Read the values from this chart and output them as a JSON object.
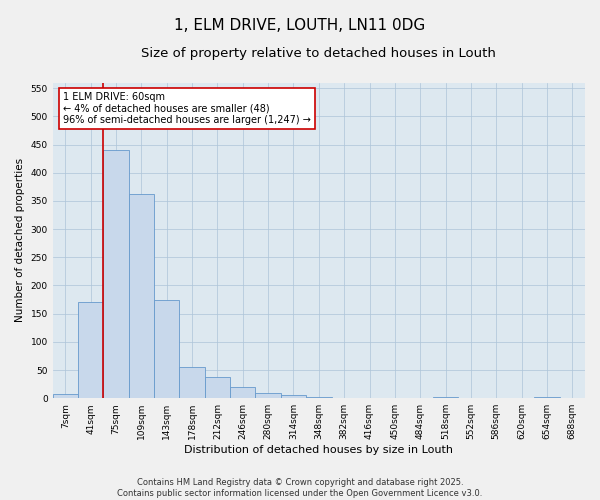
{
  "title": "1, ELM DRIVE, LOUTH, LN11 0DG",
  "subtitle": "Size of property relative to detached houses in Louth",
  "xlabel": "Distribution of detached houses by size in Louth",
  "ylabel": "Number of detached properties",
  "bar_color": "#c8d8eb",
  "bar_edge_color": "#6699cc",
  "vline_color": "#cc0000",
  "categories": [
    "7sqm",
    "41sqm",
    "75sqm",
    "109sqm",
    "143sqm",
    "178sqm",
    "212sqm",
    "246sqm",
    "280sqm",
    "314sqm",
    "348sqm",
    "382sqm",
    "416sqm",
    "450sqm",
    "484sqm",
    "518sqm",
    "552sqm",
    "586sqm",
    "620sqm",
    "654sqm",
    "688sqm"
  ],
  "values": [
    8,
    170,
    440,
    363,
    175,
    55,
    38,
    20,
    10,
    5,
    2,
    0,
    0,
    0,
    0,
    2,
    0,
    0,
    0,
    2,
    0
  ],
  "ylim": [
    0,
    560
  ],
  "yticks": [
    0,
    50,
    100,
    150,
    200,
    250,
    300,
    350,
    400,
    450,
    500,
    550
  ],
  "grid_color": "#adc4d9",
  "plot_bg_color": "#dde8f0",
  "fig_bg_color": "#f0f0f0",
  "annotation_text": "1 ELM DRIVE: 60sqm\n← 4% of detached houses are smaller (48)\n96% of semi-detached houses are larger (1,247) →",
  "annotation_box_facecolor": "#ffffff",
  "annotation_box_edgecolor": "#cc0000",
  "footer": "Contains HM Land Registry data © Crown copyright and database right 2025.\nContains public sector information licensed under the Open Government Licence v3.0.",
  "title_fontsize": 11,
  "subtitle_fontsize": 9.5,
  "xlabel_fontsize": 8,
  "ylabel_fontsize": 7.5,
  "tick_fontsize": 6.5,
  "annot_fontsize": 7,
  "footer_fontsize": 6
}
